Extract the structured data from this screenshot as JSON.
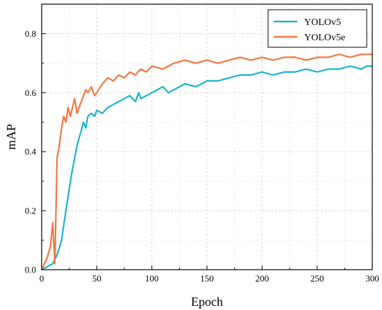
{
  "chart_data": {
    "type": "line",
    "xlabel": "Epoch",
    "ylabel": "mAP",
    "xlim": [
      0,
      300
    ],
    "ylim": [
      0,
      0.9
    ],
    "xticks": [
      "0",
      "50",
      "100",
      "150",
      "200",
      "250",
      "300"
    ],
    "yticks": [
      "0.0",
      "0.2",
      "0.4",
      "0.6",
      "0.8"
    ],
    "grid": true,
    "legend_position": "top-right",
    "series": [
      {
        "name": "YOLOv5",
        "color": "#1bb3c8",
        "x": [
          0,
          10,
          14,
          18,
          20,
          24,
          27,
          30,
          32,
          35,
          38,
          40,
          42,
          45,
          48,
          50,
          55,
          60,
          65,
          70,
          75,
          80,
          85,
          88,
          90,
          95,
          100,
          105,
          110,
          115,
          120,
          125,
          130,
          140,
          150,
          160,
          170,
          180,
          190,
          200,
          210,
          220,
          230,
          240,
          250,
          260,
          270,
          280,
          290,
          295,
          300
        ],
        "y": [
          0,
          0.02,
          0.05,
          0.1,
          0.15,
          0.25,
          0.32,
          0.38,
          0.42,
          0.46,
          0.5,
          0.48,
          0.52,
          0.53,
          0.52,
          0.54,
          0.53,
          0.55,
          0.56,
          0.57,
          0.58,
          0.59,
          0.57,
          0.6,
          0.58,
          0.59,
          0.6,
          0.61,
          0.62,
          0.6,
          0.61,
          0.62,
          0.63,
          0.62,
          0.64,
          0.64,
          0.65,
          0.66,
          0.66,
          0.67,
          0.66,
          0.67,
          0.67,
          0.68,
          0.67,
          0.68,
          0.68,
          0.69,
          0.68,
          0.69,
          0.69
        ]
      },
      {
        "name": "YOLOv5e",
        "color": "#f47540",
        "x": [
          0,
          5,
          8,
          10,
          12,
          14,
          16,
          18,
          20,
          22,
          24,
          26,
          28,
          30,
          32,
          35,
          38,
          40,
          42,
          45,
          48,
          50,
          55,
          60,
          65,
          70,
          75,
          80,
          85,
          90,
          95,
          100,
          110,
          120,
          130,
          140,
          150,
          160,
          170,
          180,
          190,
          200,
          210,
          220,
          230,
          240,
          250,
          260,
          270,
          280,
          290,
          300
        ],
        "y": [
          0,
          0.04,
          0.08,
          0.16,
          0.02,
          0.38,
          0.42,
          0.48,
          0.52,
          0.5,
          0.55,
          0.52,
          0.55,
          0.58,
          0.53,
          0.56,
          0.59,
          0.61,
          0.6,
          0.62,
          0.59,
          0.6,
          0.63,
          0.65,
          0.64,
          0.66,
          0.65,
          0.67,
          0.66,
          0.68,
          0.67,
          0.69,
          0.68,
          0.7,
          0.71,
          0.7,
          0.71,
          0.7,
          0.71,
          0.72,
          0.71,
          0.72,
          0.71,
          0.72,
          0.72,
          0.71,
          0.72,
          0.72,
          0.73,
          0.72,
          0.73,
          0.73
        ]
      }
    ]
  }
}
